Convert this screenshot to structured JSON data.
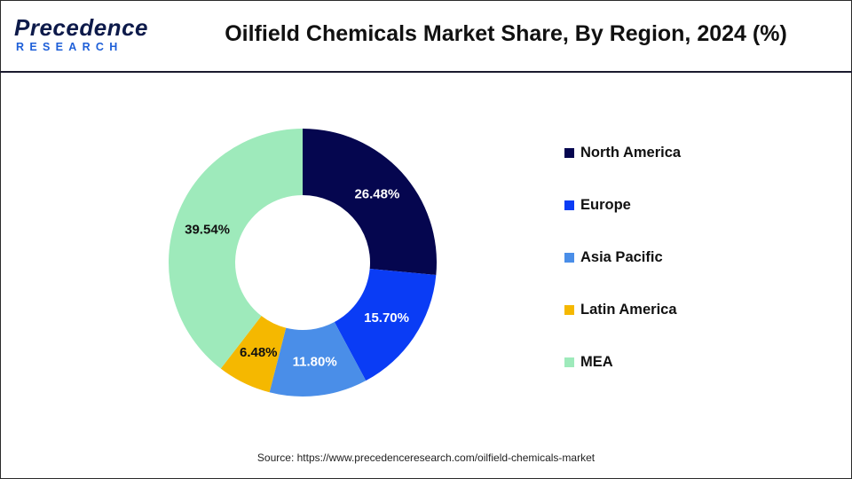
{
  "header": {
    "logo_main": "Precedence",
    "logo_sub": "RESEARCH",
    "title": "Oilfield Chemicals Market Share, By Region, 2024 (%)"
  },
  "chart_data": {
    "type": "pie",
    "variant": "donut",
    "title": "Oilfield Chemicals Market Share, By Region, 2024 (%)",
    "categories": [
      "North America",
      "Europe",
      "Asia Pacific",
      "Latin America",
      "MEA"
    ],
    "values": [
      26.48,
      15.7,
      11.8,
      6.48,
      39.54
    ],
    "value_labels": [
      "26.48%",
      "15.70%",
      "11.80%",
      "6.48%",
      "39.54%"
    ],
    "colors": [
      "#05064f",
      "#0a3cf5",
      "#4a8ee8",
      "#f5b800",
      "#9eeabb"
    ],
    "label_colors": [
      "#ffffff",
      "#ffffff",
      "#ffffff",
      "#111111",
      "#111111"
    ],
    "legend_position": "right"
  },
  "source": "Source: https://www.precedenceresearch.com/oilfield-chemicals-market"
}
